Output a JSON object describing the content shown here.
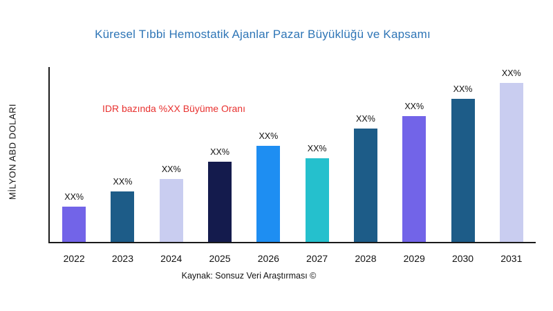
{
  "source": "Kaynak: Sonsuz Veri Araştırması ©",
  "chart_data": {
    "type": "bar",
    "title": "Küresel Tıbbi Hemostatik Ajanlar Pazar Büyüklüğü ve Kapsamı",
    "ylabel": "MİLYON ABD DOLARI",
    "xlabel": "",
    "annotation": "IDR bazında %XX Büyüme Oranı",
    "categories": [
      "2022",
      "2023",
      "2024",
      "2025",
      "2026",
      "2027",
      "2028",
      "2029",
      "2030",
      "2031"
    ],
    "values": [
      20,
      29,
      36,
      46,
      55,
      48,
      65,
      72,
      82,
      91
    ],
    "value_unit": "relative height, % of plot (numeric values not labeled in chart)",
    "bar_labels": [
      "XX%",
      "XX%",
      "XX%",
      "XX%",
      "XX%",
      "XX%",
      "XX%",
      "XX%",
      "XX%",
      "XX%"
    ],
    "bar_colors": [
      "#7264e8",
      "#1d5c88",
      "#c9cdf0",
      "#141b4d",
      "#1e8ef2",
      "#25c0cd",
      "#1d5c88",
      "#7264e8",
      "#1d5c88",
      "#c9cdf0"
    ],
    "ylim": [
      0,
      100
    ],
    "grid": false,
    "legend": false,
    "colors": {
      "title": "#2e75b6",
      "annotation": "#e8312f",
      "axis": "#1a1a1a",
      "text": "#111111"
    }
  }
}
